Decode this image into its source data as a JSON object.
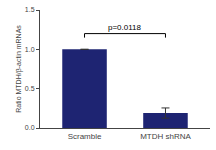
{
  "chart_data": {
    "type": "bar",
    "categories": [
      "Scramble",
      "MTDH shRNA"
    ],
    "values": [
      1.0,
      0.19
    ],
    "errors": [
      0.0,
      0.065
    ],
    "color": "#1e2472",
    "ylabel": "Ratio MTDH/β-actin mRNAs",
    "ylim": [
      0,
      1.5
    ],
    "yticks": [
      0.0,
      0.5,
      1.0,
      1.5
    ],
    "grid": false,
    "annotations": [
      {
        "text": "p=0.0118",
        "y": 1.2
      }
    ]
  }
}
